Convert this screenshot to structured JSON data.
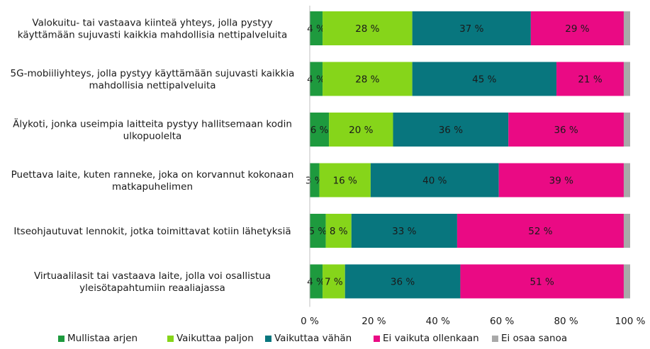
{
  "chart_data": {
    "type": "bar",
    "orientation": "horizontal",
    "stacked": true,
    "categories": [
      [
        "Valokuitu- tai vastaava kiinteä yhteys, jolla pystyy",
        "käyttämään sujuvasti kaikkia mahdollisia nettipalveluita"
      ],
      [
        "5G-mobiiliyhteys, jolla pystyy käyttämään sujuvasti kaikkia",
        "mahdollisia nettipalveluita"
      ],
      [
        "Älykoti, jonka useimpia laitteita pystyy hallitsemaan kodin",
        "ulkopuolelta"
      ],
      [
        "Puettava laite, kuten ranneke, joka on korvannut kokonaan",
        "matkapuhelimen"
      ],
      [
        "Itseohjautuvat lennokit, jotka toimittavat kotiin lähetyksiä"
      ],
      [
        "Virtuaalilasit tai vastaava laite, jolla voi osallistua",
        "yleisötapahtumiin reaaliajassa"
      ]
    ],
    "series": [
      {
        "name": "Mullistaa arjen",
        "color": "#1e9a3e",
        "values": [
          4,
          4,
          6,
          3,
          5,
          4
        ]
      },
      {
        "name": "Vaikuttaa paljon",
        "color": "#86d51a",
        "values": [
          28,
          28,
          20,
          16,
          8,
          7
        ]
      },
      {
        "name": "Vaikuttaa vähän",
        "color": "#08767e",
        "values": [
          37,
          45,
          36,
          40,
          33,
          36
        ]
      },
      {
        "name": "Ei vaikuta ollenkaan",
        "color": "#ea0a84",
        "values": [
          29,
          21,
          36,
          39,
          52,
          51
        ]
      },
      {
        "name": "Ei osaa sanoa",
        "color": "#a9a9a9",
        "values": [
          2,
          2,
          2,
          2,
          2,
          2
        ]
      }
    ],
    "data_labels": [
      [
        "4 %",
        "28 %",
        "37 %",
        "29 %",
        ""
      ],
      [
        "4 %",
        "28 %",
        "45 %",
        "21 %",
        ""
      ],
      [
        "6 %",
        "20 %",
        "36 %",
        "36 %",
        ""
      ],
      [
        "3 %",
        "16 %",
        "40 %",
        "39 %",
        ""
      ],
      [
        "5 %",
        "8 %",
        "33 %",
        "52 %",
        ""
      ],
      [
        "4 %",
        "7 %",
        "36 %",
        "51 %",
        ""
      ]
    ],
    "xticks": [
      "0 %",
      "20 %",
      "40 %",
      "60 %",
      "80 %",
      "100 %"
    ],
    "xlim": [
      0,
      100
    ],
    "title": "",
    "xlabel": "",
    "ylabel": "",
    "grid": false,
    "legend_position": "bottom"
  }
}
